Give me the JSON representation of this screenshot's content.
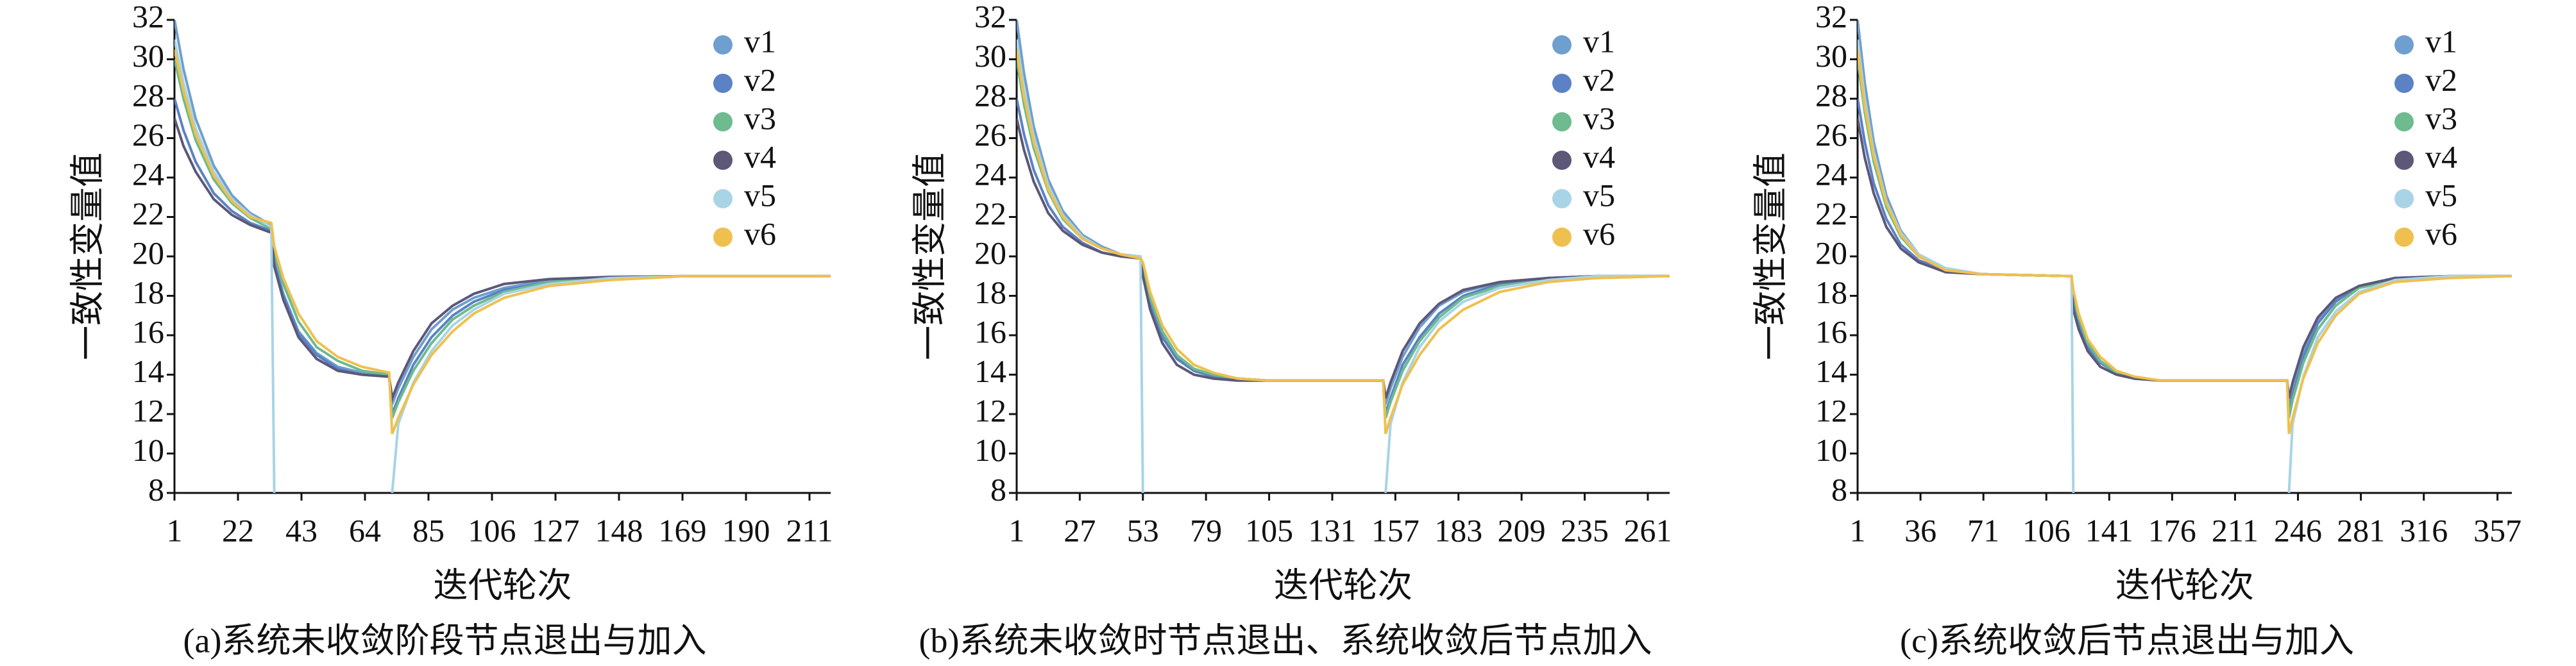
{
  "chart_data": [
    {
      "type": "line",
      "caption": "(a)系统未收敛阶段节点退出与加入",
      "xlabel": "迭代轮次",
      "ylabel": "一致性变量值",
      "x": [
        1,
        4,
        8,
        14,
        20,
        26,
        33,
        34,
        37,
        42,
        48,
        55,
        63,
        72,
        73,
        75,
        80,
        86,
        93,
        100,
        110,
        125,
        145,
        170,
        218
      ],
      "xlim": [
        1,
        218
      ],
      "xticks": [
        1,
        22,
        43,
        64,
        85,
        106,
        127,
        148,
        169,
        190,
        211
      ],
      "ylim": [
        8,
        32
      ],
      "yticks": [
        8,
        10,
        12,
        14,
        16,
        18,
        20,
        22,
        24,
        26,
        28,
        30,
        32
      ],
      "series": [
        {
          "name": "v1",
          "color": "#6f9fcf",
          "values": [
            32,
            29.5,
            27.0,
            24.6,
            23.1,
            22.2,
            21.6,
            19.8,
            18.1,
            16.2,
            15.1,
            14.4,
            14.1,
            13.9,
            12.5,
            13.3,
            14.9,
            16.3,
            17.3,
            17.9,
            18.4,
            18.8,
            18.95,
            19.0,
            19.0
          ]
        },
        {
          "name": "v2",
          "color": "#5b82c4",
          "values": [
            28,
            26.4,
            24.8,
            23.2,
            22.3,
            21.7,
            21.3,
            19.6,
            18.0,
            16.1,
            15.0,
            14.3,
            14.0,
            13.9,
            12.0,
            12.8,
            14.5,
            15.9,
            17.0,
            17.7,
            18.3,
            18.7,
            18.9,
            19.0,
            19.0
          ]
        },
        {
          "name": "v3",
          "color": "#6dbb8e",
          "values": [
            30,
            28.0,
            25.9,
            23.9,
            22.7,
            21.95,
            21.4,
            20.2,
            18.6,
            16.7,
            15.4,
            14.7,
            14.2,
            14.0,
            11.8,
            12.6,
            14.2,
            15.6,
            16.8,
            17.5,
            18.2,
            18.7,
            18.9,
            19.0,
            19.0
          ]
        },
        {
          "name": "v4",
          "color": "#5c5878",
          "values": [
            27,
            25.6,
            24.3,
            22.9,
            22.1,
            21.6,
            21.2,
            19.5,
            17.8,
            15.9,
            14.8,
            14.2,
            14.0,
            13.9,
            12.8,
            13.6,
            15.2,
            16.6,
            17.5,
            18.1,
            18.6,
            18.85,
            18.96,
            19.0,
            19.0
          ]
        },
        {
          "name": "v5",
          "color": "#a8d4e6",
          "values": [
            31,
            28.8,
            26.5,
            24.3,
            22.9,
            22.1,
            21.5,
            8,
            null,
            null,
            null,
            null,
            null,
            null,
            8,
            11.5,
            13.6,
            15.2,
            16.5,
            17.3,
            18.1,
            18.6,
            18.9,
            19.0,
            19.0
          ]
        },
        {
          "name": "v6",
          "color": "#efc04f",
          "values": [
            30.5,
            28.4,
            26.2,
            24.1,
            22.8,
            22.0,
            21.7,
            20.5,
            18.9,
            17.1,
            15.7,
            14.9,
            14.4,
            14.1,
            11.0,
            11.8,
            13.5,
            15.0,
            16.2,
            17.1,
            17.9,
            18.5,
            18.8,
            19.0,
            19.0
          ]
        }
      ]
    },
    {
      "type": "line",
      "caption": "(b)系统未收敛时节点退出、系统收敛后节点加入",
      "xlabel": "迭代轮次",
      "ylabel": "一致性变量值",
      "x": [
        1,
        4,
        8,
        14,
        20,
        28,
        36,
        44,
        52,
        53,
        56,
        61,
        67,
        74,
        82,
        92,
        105,
        130,
        152,
        153,
        155,
        160,
        167,
        175,
        185,
        200,
        220,
        240,
        270
      ],
      "xlim": [
        1,
        270
      ],
      "xticks": [
        1,
        27,
        53,
        79,
        105,
        131,
        157,
        183,
        209,
        235,
        261
      ],
      "ylim": [
        8,
        32
      ],
      "yticks": [
        8,
        10,
        12,
        14,
        16,
        18,
        20,
        22,
        24,
        26,
        28,
        30,
        32
      ],
      "series": [
        {
          "name": "v1",
          "color": "#6f9fcf",
          "values": [
            32,
            29.3,
            26.6,
            23.9,
            22.3,
            21.1,
            20.5,
            20.1,
            20.0,
            19.3,
            17.7,
            16.0,
            14.9,
            14.2,
            13.9,
            13.8,
            13.7,
            13.7,
            13.7,
            12.5,
            13.3,
            14.9,
            16.4,
            17.5,
            18.2,
            18.7,
            18.9,
            19.0,
            19.0
          ]
        },
        {
          "name": "v2",
          "color": "#5b82c4",
          "values": [
            28,
            26.2,
            24.4,
            22.6,
            21.5,
            20.7,
            20.2,
            20.0,
            19.9,
            19.2,
            17.6,
            15.9,
            14.8,
            14.2,
            13.9,
            13.8,
            13.7,
            13.7,
            13.7,
            12.0,
            12.8,
            14.5,
            15.9,
            17.1,
            18.0,
            18.6,
            18.9,
            19.0,
            19.0
          ]
        },
        {
          "name": "v3",
          "color": "#6dbb8e",
          "values": [
            30,
            27.7,
            25.5,
            23.3,
            21.9,
            20.9,
            20.4,
            20.1,
            19.9,
            19.5,
            17.9,
            16.2,
            15.0,
            14.3,
            14.0,
            13.8,
            13.7,
            13.7,
            13.7,
            11.8,
            12.6,
            14.2,
            15.7,
            16.9,
            17.9,
            18.5,
            18.8,
            19.0,
            19.0
          ]
        },
        {
          "name": "v4",
          "color": "#5c5878",
          "values": [
            27,
            25.4,
            23.8,
            22.2,
            21.3,
            20.6,
            20.2,
            20.0,
            19.9,
            19.0,
            17.3,
            15.6,
            14.5,
            14.0,
            13.8,
            13.7,
            13.7,
            13.7,
            13.7,
            12.8,
            13.6,
            15.2,
            16.6,
            17.6,
            18.3,
            18.7,
            18.9,
            19.0,
            19.0
          ]
        },
        {
          "name": "v5",
          "color": "#a8d4e6",
          "values": [
            31,
            28.5,
            26.1,
            23.6,
            22.1,
            21.0,
            20.4,
            20.1,
            20.0,
            8,
            null,
            null,
            null,
            null,
            null,
            null,
            null,
            null,
            null,
            8,
            11.5,
            13.6,
            15.4,
            16.7,
            17.7,
            18.4,
            18.8,
            19.0,
            19.0
          ]
        },
        {
          "name": "v6",
          "color": "#efc04f",
          "values": [
            30.5,
            28.1,
            25.8,
            23.4,
            22.0,
            20.9,
            20.4,
            20.1,
            19.9,
            19.7,
            18.2,
            16.5,
            15.3,
            14.5,
            14.1,
            13.8,
            13.7,
            13.7,
            13.7,
            11.0,
            11.8,
            13.5,
            15.0,
            16.3,
            17.3,
            18.2,
            18.7,
            18.9,
            19.0
          ]
        }
      ]
    },
    {
      "type": "line",
      "caption": "(c)系统收敛后节点退出与加入",
      "xlabel": "迭代轮次",
      "ylabel": "一致性变量值",
      "x": [
        1,
        5,
        10,
        17,
        25,
        35,
        50,
        70,
        120,
        121,
        124,
        129,
        136,
        145,
        155,
        170,
        200,
        240,
        241,
        243,
        249,
        257,
        267,
        280,
        300,
        330,
        365
      ],
      "xlim": [
        1,
        365
      ],
      "xticks": [
        1,
        36,
        71,
        106,
        141,
        176,
        211,
        246,
        281,
        316,
        357
      ],
      "ylim": [
        8,
        32
      ],
      "yticks": [
        8,
        10,
        12,
        14,
        16,
        18,
        20,
        22,
        24,
        26,
        28,
        30,
        32
      ],
      "series": [
        {
          "name": "v1",
          "color": "#6f9fcf",
          "values": [
            32,
            28.8,
            25.8,
            23.1,
            21.3,
            20.1,
            19.4,
            19.1,
            19.0,
            17.8,
            16.7,
            15.5,
            14.6,
            14.1,
            13.8,
            13.7,
            13.7,
            13.7,
            12.5,
            13.3,
            15.2,
            16.8,
            17.8,
            18.5,
            18.9,
            19.0,
            19.0
          ]
        },
        {
          "name": "v2",
          "color": "#5b82c4",
          "values": [
            28,
            25.8,
            23.7,
            21.9,
            20.6,
            19.8,
            19.3,
            19.1,
            19.0,
            17.6,
            16.6,
            15.4,
            14.6,
            14.1,
            13.8,
            13.7,
            13.7,
            13.7,
            12.0,
            12.9,
            14.9,
            16.6,
            17.7,
            18.5,
            18.9,
            19.0,
            19.0
          ]
        },
        {
          "name": "v3",
          "color": "#6dbb8e",
          "values": [
            30,
            27.3,
            24.8,
            22.5,
            21.0,
            20.0,
            19.3,
            19.1,
            19.0,
            18.0,
            16.9,
            15.6,
            14.7,
            14.1,
            13.8,
            13.7,
            13.7,
            13.7,
            11.8,
            12.7,
            14.6,
            16.3,
            17.5,
            18.4,
            18.8,
            19.0,
            19.0
          ]
        },
        {
          "name": "v4",
          "color": "#5c5878",
          "values": [
            27,
            25.0,
            23.2,
            21.5,
            20.4,
            19.7,
            19.2,
            19.1,
            19.0,
            17.3,
            16.3,
            15.2,
            14.4,
            14.0,
            13.8,
            13.7,
            13.7,
            13.7,
            12.8,
            13.6,
            15.4,
            16.9,
            17.9,
            18.5,
            18.9,
            19.0,
            19.0
          ]
        },
        {
          "name": "v5",
          "color": "#a8d4e6",
          "values": [
            31,
            28.0,
            25.3,
            22.8,
            21.2,
            20.1,
            19.4,
            19.1,
            19.0,
            8,
            null,
            null,
            null,
            null,
            null,
            null,
            null,
            null,
            8,
            11.5,
            13.9,
            15.9,
            17.2,
            18.2,
            18.8,
            19.0,
            19.0
          ]
        },
        {
          "name": "v6",
          "color": "#efc04f",
          "values": [
            30.5,
            27.6,
            25.1,
            22.7,
            21.1,
            20.0,
            19.3,
            19.1,
            19.0,
            18.3,
            17.1,
            15.8,
            14.9,
            14.2,
            13.9,
            13.7,
            13.7,
            13.7,
            11.0,
            11.8,
            13.8,
            15.6,
            17.0,
            18.1,
            18.7,
            18.9,
            19.0
          ]
        }
      ]
    }
  ]
}
